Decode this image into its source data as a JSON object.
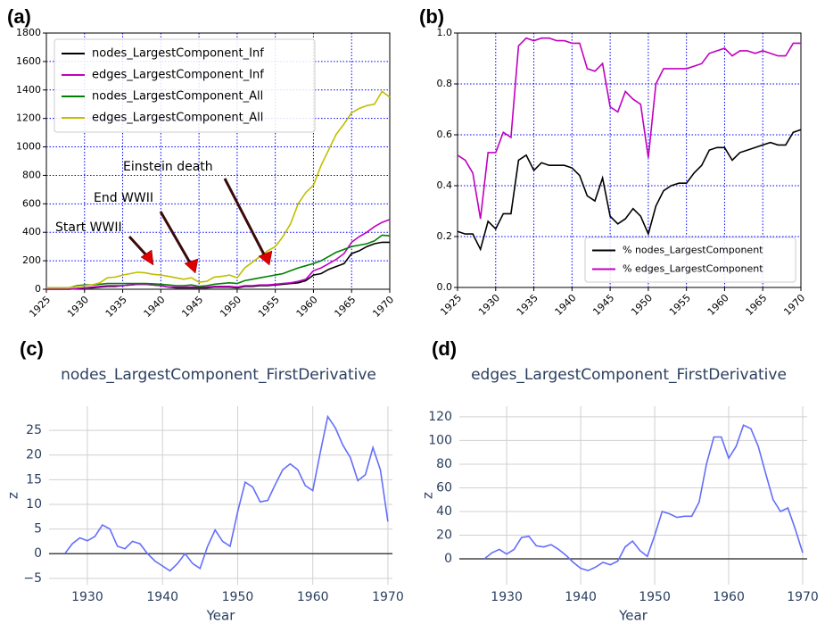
{
  "chart_data": [
    {
      "type": "line",
      "label": "(a)",
      "x": [
        1925,
        1926,
        1927,
        1928,
        1929,
        1930,
        1931,
        1932,
        1933,
        1934,
        1935,
        1936,
        1937,
        1938,
        1939,
        1940,
        1941,
        1942,
        1943,
        1944,
        1945,
        1946,
        1947,
        1948,
        1949,
        1950,
        1951,
        1952,
        1953,
        1954,
        1955,
        1956,
        1957,
        1958,
        1959,
        1960,
        1961,
        1962,
        1963,
        1964,
        1965,
        1966,
        1967,
        1968,
        1969,
        1970
      ],
      "series": [
        {
          "name": "nodes_LargestComponent_Inf",
          "color": "#000000",
          "values": [
            0,
            0,
            0,
            0,
            5,
            10,
            10,
            15,
            20,
            20,
            25,
            30,
            35,
            35,
            30,
            25,
            15,
            10,
            10,
            10,
            10,
            10,
            15,
            15,
            15,
            10,
            20,
            20,
            25,
            25,
            30,
            35,
            40,
            45,
            60,
            100,
            110,
            140,
            160,
            180,
            250,
            270,
            300,
            320,
            330,
            330
          ]
        },
        {
          "name": "edges_LargestComponent_Inf",
          "color": "#c000c0",
          "values": [
            0,
            0,
            0,
            0,
            5,
            10,
            15,
            20,
            25,
            25,
            25,
            30,
            35,
            35,
            30,
            25,
            15,
            15,
            15,
            15,
            15,
            15,
            20,
            20,
            20,
            15,
            25,
            25,
            30,
            30,
            35,
            40,
            45,
            55,
            70,
            130,
            150,
            180,
            210,
            250,
            330,
            370,
            400,
            440,
            470,
            490
          ]
        },
        {
          "name": "nodes_LargestComponent_All",
          "color": "#008000",
          "values": [
            10,
            10,
            10,
            10,
            25,
            30,
            30,
            35,
            40,
            40,
            40,
            40,
            40,
            40,
            38,
            35,
            30,
            25,
            25,
            30,
            20,
            25,
            35,
            40,
            45,
            40,
            60,
            70,
            80,
            90,
            100,
            110,
            130,
            150,
            165,
            180,
            200,
            230,
            260,
            280,
            300,
            310,
            320,
            340,
            380,
            375
          ]
        },
        {
          "name": "edges_LargestComponent_All",
          "color": "#bfbf00",
          "values": [
            10,
            10,
            10,
            10,
            20,
            25,
            30,
            45,
            80,
            85,
            100,
            110,
            120,
            115,
            105,
            100,
            90,
            80,
            70,
            80,
            50,
            55,
            85,
            90,
            100,
            80,
            150,
            190,
            230,
            270,
            300,
            370,
            460,
            600,
            680,
            730,
            870,
            980,
            1090,
            1160,
            1240,
            1270,
            1290,
            1300,
            1390,
            1350
          ]
        }
      ],
      "annotations": [
        "Start WWII",
        "End WWII",
        "Einstein death"
      ],
      "xlim": [
        1925,
        1970
      ],
      "xticks": [
        1925,
        1930,
        1935,
        1940,
        1945,
        1950,
        1955,
        1960,
        1965,
        1970
      ],
      "ylim": [
        0,
        1800
      ],
      "yticks": [
        0,
        200,
        400,
        600,
        800,
        1000,
        1200,
        1400,
        1600,
        1800
      ],
      "grid": true,
      "legend": "upper left"
    },
    {
      "type": "line",
      "label": "(b)",
      "x": [
        1925,
        1926,
        1927,
        1928,
        1929,
        1930,
        1931,
        1932,
        1933,
        1934,
        1935,
        1936,
        1937,
        1938,
        1939,
        1940,
        1941,
        1942,
        1943,
        1944,
        1945,
        1946,
        1947,
        1948,
        1949,
        1950,
        1951,
        1952,
        1953,
        1954,
        1955,
        1956,
        1957,
        1958,
        1959,
        1960,
        1961,
        1962,
        1963,
        1964,
        1965,
        1966,
        1967,
        1968,
        1969,
        1970
      ],
      "series": [
        {
          "name": "% nodes_LargestComponent",
          "color": "#000000",
          "values": [
            0.22,
            0.21,
            0.21,
            0.15,
            0.26,
            0.23,
            0.29,
            0.29,
            0.5,
            0.52,
            0.46,
            0.49,
            0.48,
            0.48,
            0.48,
            0.47,
            0.44,
            0.36,
            0.34,
            0.43,
            0.28,
            0.25,
            0.27,
            0.31,
            0.28,
            0.21,
            0.32,
            0.38,
            0.4,
            0.41,
            0.41,
            0.45,
            0.48,
            0.54,
            0.55,
            0.55,
            0.5,
            0.53,
            0.54,
            0.55,
            0.56,
            0.57,
            0.56,
            0.56,
            0.61,
            0.62
          ]
        },
        {
          "name": "% edges_LargestComponent",
          "color": "#c000c0",
          "values": [
            0.52,
            0.5,
            0.45,
            0.27,
            0.53,
            0.53,
            0.61,
            0.59,
            0.95,
            0.98,
            0.97,
            0.98,
            0.98,
            0.97,
            0.97,
            0.96,
            0.96,
            0.86,
            0.85,
            0.88,
            0.71,
            0.69,
            0.77,
            0.74,
            0.72,
            0.51,
            0.8,
            0.86,
            0.86,
            0.86,
            0.86,
            0.87,
            0.88,
            0.92,
            0.93,
            0.94,
            0.91,
            0.93,
            0.93,
            0.92,
            0.93,
            0.92,
            0.91,
            0.91,
            0.96,
            0.96
          ]
        }
      ],
      "xlim": [
        1925,
        1970
      ],
      "xticks": [
        1925,
        1930,
        1935,
        1940,
        1945,
        1950,
        1955,
        1960,
        1965,
        1970
      ],
      "ylim": [
        0,
        1
      ],
      "yticks": [
        {
          "value": 0,
          "label": "0.0"
        },
        0.2,
        0.4,
        0.6,
        0.8,
        {
          "value": 1,
          "label": "1.0"
        }
      ],
      "grid": true,
      "legend": "lower right"
    },
    {
      "type": "line",
      "label": "(c)",
      "title": "nodes_LargestComponent_FirstDerivative",
      "xlabel": "Year",
      "ylabel": "z",
      "x": [
        1927,
        1928,
        1929,
        1930,
        1931,
        1932,
        1933,
        1934,
        1935,
        1936,
        1937,
        1938,
        1939,
        1940,
        1941,
        1942,
        1943,
        1944,
        1945,
        1946,
        1947,
        1948,
        1949,
        1950,
        1951,
        1952,
        1953,
        1954,
        1955,
        1956,
        1957,
        1958,
        1959,
        1960,
        1961,
        1962,
        1963,
        1964,
        1965,
        1966,
        1967,
        1968,
        1969,
        1970
      ],
      "series": [
        {
          "name": "z",
          "color": "#636efa",
          "values": [
            0,
            2,
            3.2,
            2.6,
            3.5,
            5.8,
            5,
            1.5,
            1,
            2.5,
            2,
            0,
            -1.5,
            -2.5,
            -3.5,
            -2,
            0,
            -2,
            -3,
            1.5,
            4.8,
            2.5,
            1.5,
            8.5,
            14.5,
            13.5,
            10.5,
            10.8,
            14,
            17,
            18.2,
            17,
            13.8,
            12.8,
            20.5,
            27.8,
            25.5,
            22,
            19.5,
            14.8,
            16,
            21.5,
            17,
            6.5
          ]
        }
      ],
      "xlim": [
        1924.9,
        1970.6
      ],
      "xticks": [
        1930,
        1940,
        1950,
        1960,
        1970
      ],
      "ylim": [
        -6.3,
        29.9
      ],
      "yticks": [
        {
          "value": -5,
          "label": "−5"
        },
        0,
        5,
        10,
        15,
        20,
        25
      ],
      "grid": true
    },
    {
      "type": "line",
      "label": "(d)",
      "title": "edges_LargestComponent_FirstDerivative",
      "xlabel": "Year",
      "ylabel": "z",
      "x": [
        1927,
        1928,
        1929,
        1930,
        1931,
        1932,
        1933,
        1934,
        1935,
        1936,
        1937,
        1938,
        1939,
        1940,
        1941,
        1942,
        1943,
        1944,
        1945,
        1946,
        1947,
        1948,
        1949,
        1950,
        1951,
        1952,
        1953,
        1954,
        1955,
        1956,
        1957,
        1958,
        1959,
        1960,
        1961,
        1962,
        1963,
        1964,
        1965,
        1966,
        1967,
        1968,
        1969,
        1970
      ],
      "series": [
        {
          "name": "z",
          "color": "#636efa",
          "values": [
            0,
            5,
            8,
            4,
            8,
            18,
            19,
            11,
            10,
            12,
            8,
            3,
            -3,
            -8,
            -10,
            -7,
            -3,
            -5,
            -2,
            10,
            15,
            7,
            2,
            20,
            40,
            38,
            35,
            36,
            36,
            48,
            80,
            103,
            103,
            85,
            95,
            113,
            110,
            95,
            72,
            50,
            40,
            43,
            25,
            5
          ]
        }
      ],
      "xlim": [
        1923.6,
        1970.6
      ],
      "xticks": [
        1930,
        1940,
        1950,
        1960,
        1970
      ],
      "ylim": [
        -21.9,
        129
      ],
      "yticks": [
        0,
        20,
        40,
        60,
        80,
        100,
        120
      ],
      "grid": true
    }
  ]
}
